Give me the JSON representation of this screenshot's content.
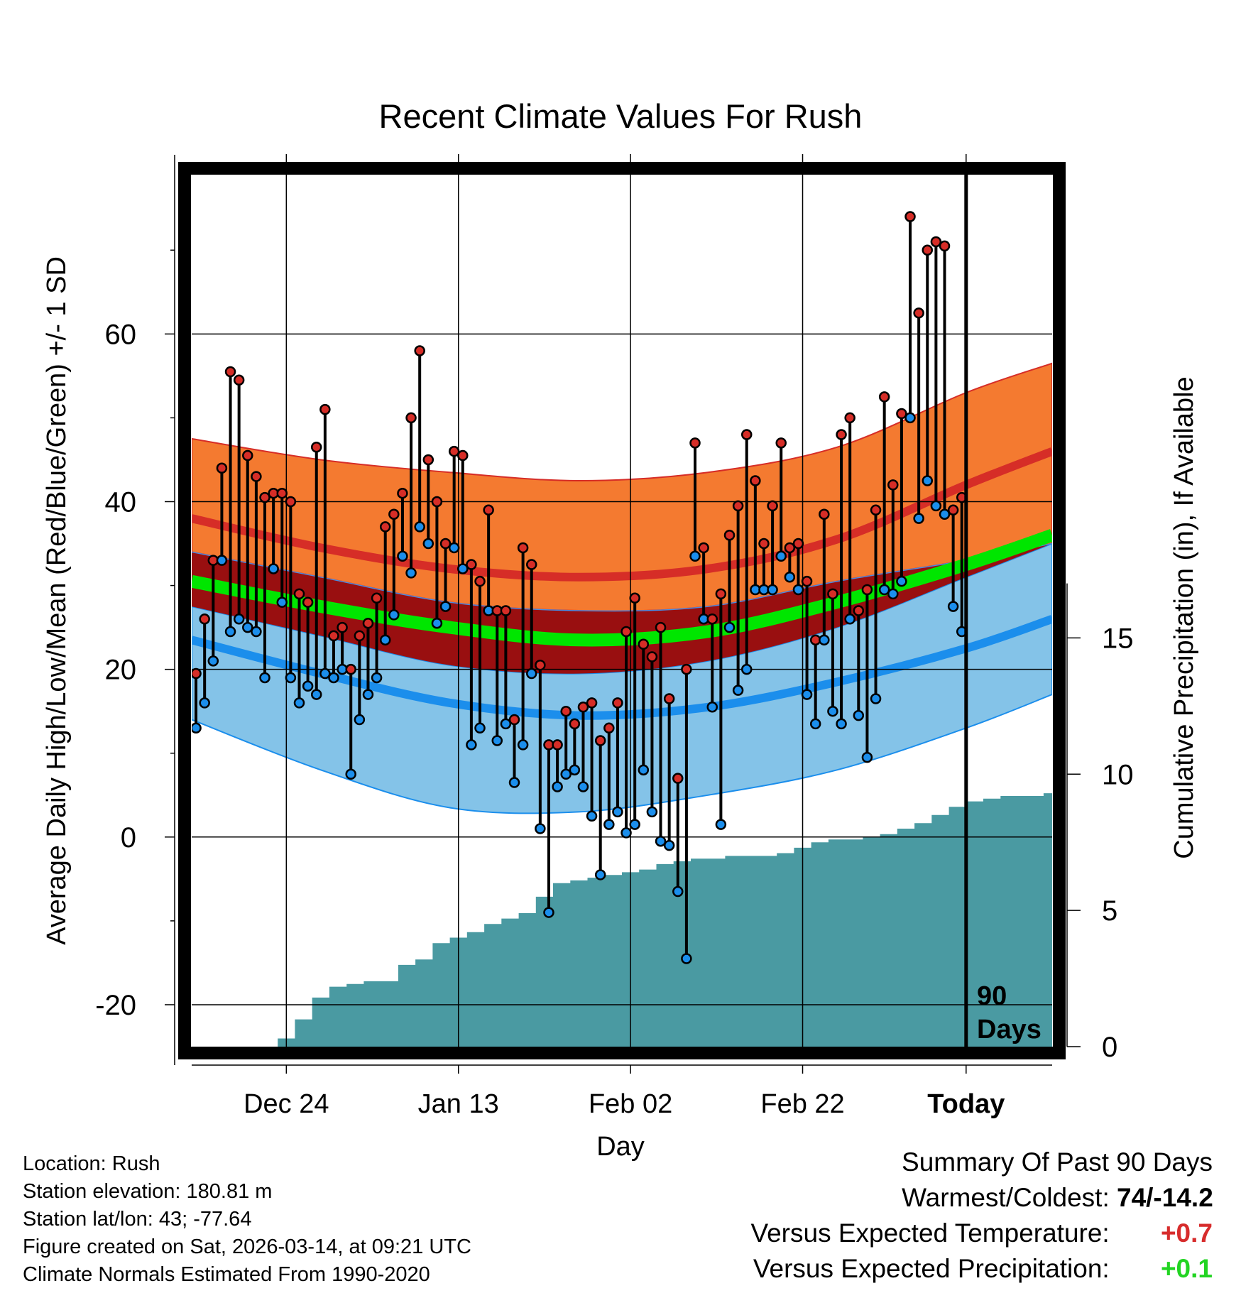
{
  "chart_data": {
    "type": "line",
    "title": "Recent Climate Values For Rush",
    "xlabel": "Day",
    "ylabel": "Average Daily High/Low/Mean (Red/Blue/Green) +/- 1 SD",
    "y2label": "Cumulative Precipitation (in), If Available",
    "ylim": [
      -25,
      79
    ],
    "y_ticks": [
      -20,
      0,
      20,
      40,
      60
    ],
    "y_tick_labels": [
      "-20",
      "0",
      "20",
      "40",
      "60"
    ],
    "y2lim": [
      0,
      32
    ],
    "y2_ticks": [
      0,
      5,
      10,
      15
    ],
    "y2_tick_labels": [
      "0",
      "5",
      "10",
      "15"
    ],
    "x_range_days": [
      -90,
      10
    ],
    "x_ticks": [
      -79,
      -59,
      -39,
      -19,
      0
    ],
    "x_tick_labels": [
      "Dec 24",
      "Jan 13",
      "Feb 02",
      "Feb 22",
      "Today"
    ],
    "period_label": [
      "90",
      "Days"
    ],
    "normals_days": [
      -90,
      -75,
      -60,
      -45,
      -30,
      -15,
      0,
      10
    ],
    "normal_high": [
      38,
      34.5,
      32,
      31,
      32,
      35.5,
      42,
      46
    ],
    "normal_high_upper": [
      47.5,
      45,
      43.5,
      42.5,
      43.5,
      46.5,
      53,
      56.5
    ],
    "normal_high_lower": [
      34,
      31,
      28,
      27,
      27.5,
      30.5,
      33,
      35
    ],
    "normal_mean": [
      30.5,
      27.5,
      25,
      23.5,
      24.5,
      28,
      32.5,
      36
    ],
    "normal_low": [
      23.5,
      19.5,
      16,
      14.5,
      15.5,
      18.5,
      22.5,
      26
    ],
    "normal_low_upper": [
      27.5,
      24,
      20.5,
      19.5,
      21,
      25,
      31,
      35
    ],
    "normal_low_lower": [
      14,
      8,
      3.5,
      3,
      5,
      8,
      13,
      17
    ],
    "observed_highs": [
      19.5,
      26,
      33,
      44,
      55.5,
      54.5,
      45.5,
      43,
      40.5,
      41,
      41,
      40,
      29,
      28,
      46.5,
      51,
      24,
      25,
      20,
      24,
      25.5,
      28.5,
      37,
      38.5,
      41,
      50,
      58,
      45,
      40,
      35,
      46,
      45.5,
      32.5,
      30.5,
      39,
      27,
      27,
      14,
      34.5,
      32.5,
      20.5,
      11,
      11,
      15,
      13.5,
      15.5,
      16,
      11.5,
      13,
      16,
      24.5,
      28.5,
      23,
      21.5,
      25,
      16.5,
      7,
      20,
      47,
      34.5,
      26,
      29,
      36,
      39.5,
      48,
      42.5,
      35,
      39.5,
      47,
      34.5,
      35,
      30.5,
      23.5,
      38.5,
      29,
      48,
      50,
      27,
      29.5,
      39,
      52.5,
      42,
      50.5,
      74,
      62.5,
      70,
      71,
      70.5,
      39,
      40.5
    ],
    "observed_lows": [
      13,
      16,
      21,
      33,
      24.5,
      26,
      25,
      24.5,
      19,
      32,
      28,
      19,
      16,
      18,
      17,
      19.5,
      19,
      20,
      7.5,
      14,
      17,
      19,
      23.5,
      26.5,
      33.5,
      31.5,
      37,
      35,
      25.5,
      27.5,
      34.5,
      32,
      11,
      13,
      27,
      11.5,
      13.5,
      6.5,
      11,
      19.5,
      1,
      -9,
      6,
      7.5,
      8,
      6,
      2.5,
      -4.5,
      1.5,
      3,
      0.5,
      1.5,
      8,
      3,
      -0.5,
      -1,
      -6.5,
      -14.5,
      33.5,
      26,
      15.5,
      1.5,
      25,
      17.5,
      20,
      29.5,
      29.5,
      29.5,
      33.5,
      31,
      29.5,
      17,
      13.5,
      23.5,
      15,
      13.5,
      26,
      14.5,
      9.5,
      16.5,
      29.5,
      29,
      30.5,
      50,
      38,
      42.5,
      39.5,
      38.5,
      27.5,
      24.5
    ],
    "precip_days": [
      -90,
      -82,
      -80,
      -78,
      -76,
      -74,
      -72,
      -70,
      -66,
      -64,
      -62,
      -60,
      -58,
      -56,
      -54,
      -52,
      -50,
      -48,
      -46,
      -44,
      -42,
      -40,
      -38,
      -36,
      -34,
      -32,
      -30,
      -28,
      -26,
      -24,
      -22,
      -20,
      -18,
      -16,
      -14,
      -12,
      -10,
      -8,
      -6,
      -4,
      -2,
      0,
      2,
      4,
      9
    ],
    "precip_values": [
      0,
      0,
      0.3,
      1.0,
      1.8,
      2.2,
      2.3,
      2.4,
      3.0,
      3.2,
      3.8,
      4.0,
      4.2,
      4.5,
      4.7,
      4.9,
      5.5,
      6.0,
      6.1,
      6.2,
      6.3,
      6.4,
      6.5,
      6.7,
      6.8,
      6.9,
      6.9,
      7.0,
      7.0,
      7.0,
      7.1,
      7.3,
      7.5,
      7.6,
      7.6,
      7.7,
      7.8,
      8.0,
      8.2,
      8.5,
      8.8,
      9.0,
      9.1,
      9.2,
      9.3
    ],
    "colors": {
      "high_band": "#f47a30",
      "high_line": "#d62d27",
      "mean_band": "#990f10",
      "mean_line": "#00e600",
      "low_band": "#84c3e8",
      "low_line": "#1b8eec",
      "precip": "#4a9aa2",
      "high_dot": "#d62d27",
      "low_dot": "#1b8eec"
    }
  },
  "info": {
    "location": "Location: Rush",
    "elevation": "Station elevation: 180.81 m",
    "latlon": "Station lat/lon: 43; -77.64",
    "created": "Figure created on Sat, 2026-03-14, at 09:21 UTC",
    "normals": "Climate Normals Estimated From 1990-2020"
  },
  "summary": {
    "title": "Summary Of Past 90 Days",
    "warm_cold_label": "Warmest/Coldest:",
    "warm_cold_value": "74/-14.2",
    "temp_label": "Versus Expected Temperature:",
    "temp_value": "+0.7",
    "precip_label": "Versus Expected Precipitation:",
    "precip_value": "+0.1"
  }
}
